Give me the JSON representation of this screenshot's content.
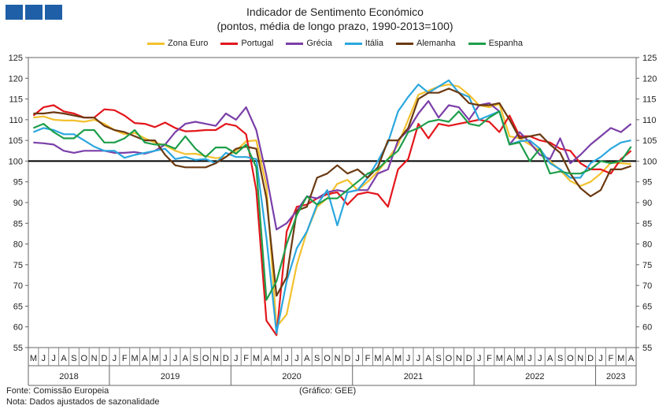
{
  "header": {
    "title": "Indicador de Sentimento Económico",
    "subtitle": "(pontos, média de longo prazo, 1990-2013=100)"
  },
  "brand": {
    "logo_color": "#1f5fa8"
  },
  "footer": {
    "source": "Fonte: Comissão Europeia",
    "note": "Nota: Dados ajustados de sazonalidade",
    "graph_credit": "(Gráfico: GEE)"
  },
  "chart_data": {
    "type": "line",
    "title": "Indicador de Sentimento Económico",
    "subtitle": "(pontos, média de longo prazo, 1990-2013=100)",
    "ylim": [
      55,
      125
    ],
    "yticks": [
      55,
      60,
      65,
      70,
      75,
      80,
      85,
      90,
      95,
      100,
      105,
      110,
      115,
      120,
      125
    ],
    "grid": false,
    "legend_position": "top",
    "reference_line": 100,
    "months": [
      "M",
      "J",
      "J",
      "A",
      "S",
      "O",
      "N",
      "D",
      "J",
      "F",
      "M",
      "A",
      "M",
      "J",
      "J",
      "A",
      "S",
      "O",
      "N",
      "D",
      "J",
      "F",
      "M",
      "A",
      "M",
      "J",
      "J",
      "A",
      "S",
      "O",
      "N",
      "D",
      "J",
      "F",
      "M",
      "A",
      "M",
      "J",
      "J",
      "A",
      "S",
      "O",
      "N",
      "D",
      "J",
      "F",
      "M",
      "A",
      "M",
      "J",
      "J",
      "A",
      "S",
      "O",
      "N",
      "D",
      "J",
      "F",
      "M",
      "A"
    ],
    "years": [
      {
        "label": "2018",
        "start": 0,
        "end": 7
      },
      {
        "label": "2019",
        "start": 8,
        "end": 19
      },
      {
        "label": "2020",
        "start": 20,
        "end": 31
      },
      {
        "label": "2021",
        "start": 32,
        "end": 43
      },
      {
        "label": "2022",
        "start": 44,
        "end": 55
      },
      {
        "label": "2023",
        "start": 56,
        "end": 59
      }
    ],
    "series": [
      {
        "name": "Zona Euro",
        "color": "#f2c12e",
        "values": [
          110.5,
          110.8,
          110.0,
          109.8,
          109.8,
          109.5,
          110.0,
          109.0,
          107.5,
          106.5,
          106.8,
          105.5,
          104.5,
          103.8,
          102.5,
          101.7,
          101.8,
          101.2,
          100.7,
          101.0,
          102.5,
          104.8,
          105.0,
          94.0,
          60.0,
          63.0,
          75.0,
          83.0,
          89.0,
          91.0,
          94.5,
          95.5,
          93.0,
          95.0,
          97.5,
          100.5,
          104.0,
          110.0,
          116.0,
          117.0,
          118.0,
          118.5,
          118.0,
          116.0,
          113.5,
          113.0,
          113.8,
          106.0,
          105.5,
          104.0,
          102.5,
          100.0,
          97.8,
          95.2,
          94.0,
          95.0,
          97.0,
          99.6,
          99.5,
          99.3
        ]
      },
      {
        "name": "Portugal",
        "color": "#e3161b",
        "values": [
          111.0,
          113.0,
          113.5,
          112.0,
          111.5,
          110.5,
          110.5,
          112.5,
          112.3,
          111.0,
          109.2,
          109.0,
          108.2,
          109.3,
          108.0,
          107.2,
          107.3,
          107.5,
          107.5,
          109.0,
          108.5,
          106.5,
          93.0,
          61.5,
          58.0,
          83.0,
          89.0,
          89.5,
          91.0,
          92.0,
          92.5,
          89.5,
          92.0,
          92.5,
          92.0,
          89.0,
          98.0,
          100.5,
          109.0,
          105.5,
          109.0,
          108.5,
          109.0,
          109.5,
          110.0,
          109.5,
          107.0,
          111.0,
          106.0,
          106.0,
          105.0,
          104.5,
          103.0,
          102.5,
          99.5,
          98.0,
          98.0,
          97.0,
          100.5,
          102.5
        ]
      },
      {
        "name": "Grécia",
        "color": "#7b3fa8",
        "values": [
          104.5,
          104.3,
          104.0,
          102.5,
          102.0,
          102.5,
          102.5,
          102.5,
          102.0,
          102.0,
          102.2,
          101.8,
          102.5,
          104.0,
          107.0,
          109.0,
          109.5,
          109.0,
          108.5,
          111.5,
          110.0,
          113.0,
          107.5,
          96.5,
          83.5,
          85.0,
          88.0,
          91.5,
          91.0,
          92.5,
          93.0,
          92.5,
          93.0,
          93.0,
          97.0,
          98.0,
          105.0,
          107.5,
          111.5,
          114.5,
          110.5,
          113.5,
          113.0,
          110.0,
          113.5,
          114.0,
          112.0,
          104.0,
          107.0,
          104.5,
          101.5,
          100.5,
          105.5,
          99.5,
          101.5,
          104.0,
          106.0,
          108.0,
          107.0,
          109.0
        ]
      },
      {
        "name": "Itália",
        "color": "#2aa7de",
        "values": [
          107.0,
          108.0,
          107.5,
          106.5,
          106.5,
          105.0,
          103.5,
          102.5,
          102.5,
          100.8,
          101.5,
          102.0,
          102.5,
          103.0,
          100.5,
          101.0,
          100.3,
          100.5,
          99.5,
          102.0,
          101.0,
          101.0,
          100.5,
          81.5,
          58.5,
          71.0,
          79.0,
          83.0,
          89.5,
          93.0,
          84.5,
          92.5,
          93.0,
          96.0,
          100.0,
          104.5,
          112.0,
          115.5,
          118.5,
          116.5,
          118.0,
          119.5,
          116.5,
          115.5,
          110.0,
          111.0,
          112.0,
          104.0,
          104.8,
          105.0,
          103.0,
          99.5,
          98.0,
          96.0,
          96.0,
          99.5,
          101.0,
          103.0,
          104.5,
          105.0
        ]
      },
      {
        "name": "Alemanha",
        "color": "#6b3a12",
        "values": [
          111.5,
          111.5,
          111.8,
          111.5,
          111.0,
          110.5,
          110.5,
          108.5,
          107.5,
          107.0,
          106.0,
          105.0,
          105.0,
          101.5,
          99.0,
          98.5,
          98.5,
          98.5,
          99.5,
          101.0,
          103.0,
          103.5,
          103.0,
          91.0,
          67.5,
          72.0,
          88.0,
          89.0,
          96.0,
          97.0,
          99.0,
          97.0,
          98.0,
          96.0,
          98.5,
          105.0,
          105.0,
          108.0,
          115.0,
          116.5,
          116.5,
          117.5,
          116.5,
          114.0,
          113.5,
          113.5,
          114.0,
          110.0,
          105.5,
          106.0,
          106.5,
          104.0,
          102.0,
          97.0,
          93.5,
          91.5,
          93.0,
          98.0,
          98.0,
          98.8
        ]
      },
      {
        "name": "Espanha",
        "color": "#1e9e4a",
        "values": [
          108.0,
          109.0,
          107.0,
          105.5,
          105.5,
          107.5,
          107.5,
          104.5,
          104.5,
          105.5,
          107.5,
          104.5,
          104.0,
          104.0,
          103.0,
          106.0,
          103.0,
          101.0,
          103.3,
          103.3,
          101.8,
          104.0,
          98.5,
          66.5,
          71.0,
          80.0,
          87.0,
          91.5,
          89.5,
          91.0,
          91.0,
          93.0,
          95.0,
          97.0,
          98.0,
          100.5,
          102.5,
          107.0,
          108.0,
          109.5,
          110.0,
          109.5,
          112.0,
          109.0,
          108.5,
          110.5,
          112.0,
          104.0,
          104.5,
          100.0,
          103.0,
          97.0,
          97.5,
          97.0,
          97.0,
          98.0,
          100.0,
          99.5,
          100.0,
          103.5
        ]
      }
    ]
  }
}
